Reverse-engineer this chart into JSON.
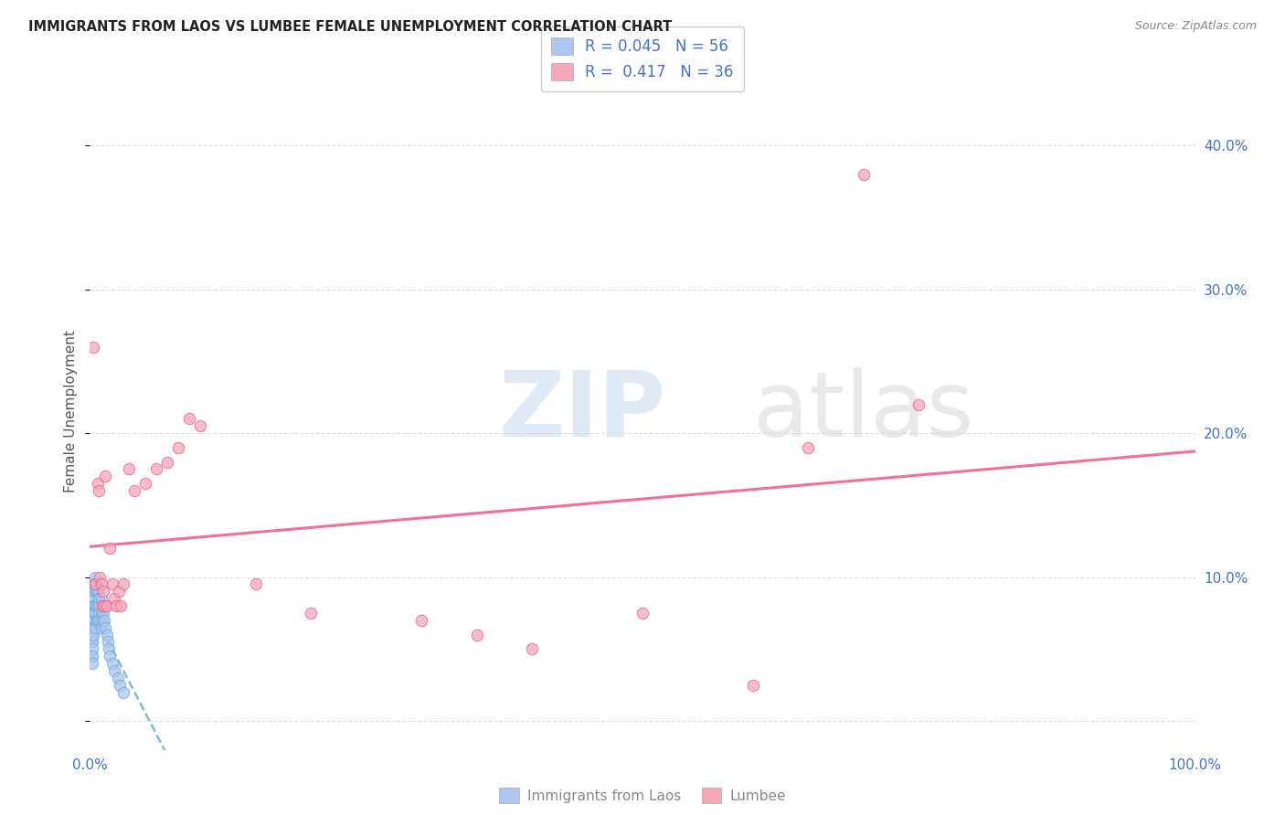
{
  "title": "IMMIGRANTS FROM LAOS VS LUMBEE FEMALE UNEMPLOYMENT CORRELATION CHART",
  "source": "Source: ZipAtlas.com",
  "ylabel": "Female Unemployment",
  "xlim": [
    0,
    1.0
  ],
  "ylim": [
    -0.02,
    0.45
  ],
  "xticks": [
    0.0,
    0.2,
    0.4,
    0.6,
    0.8,
    1.0
  ],
  "xticklabels": [
    "0.0%",
    "",
    "",
    "",
    "",
    "100.0%"
  ],
  "yticks": [
    0.0,
    0.1,
    0.2,
    0.3,
    0.4
  ],
  "yticklabels": [
    "",
    "10.0%",
    "20.0%",
    "30.0%",
    "40.0%"
  ],
  "laos_R": 0.045,
  "laos_N": 56,
  "lumbee_R": 0.417,
  "lumbee_N": 36,
  "laos_color": "#aec6f0",
  "lumbee_color": "#f4a7b9",
  "laos_line_color": "#6baed6",
  "lumbee_line_color": "#f06090",
  "laos_x": [
    0.001,
    0.001,
    0.001,
    0.002,
    0.002,
    0.002,
    0.002,
    0.002,
    0.002,
    0.002,
    0.003,
    0.003,
    0.003,
    0.003,
    0.003,
    0.003,
    0.003,
    0.004,
    0.004,
    0.004,
    0.004,
    0.004,
    0.005,
    0.005,
    0.005,
    0.005,
    0.005,
    0.005,
    0.006,
    0.006,
    0.006,
    0.006,
    0.007,
    0.007,
    0.007,
    0.008,
    0.008,
    0.009,
    0.009,
    0.01,
    0.01,
    0.01,
    0.011,
    0.011,
    0.012,
    0.013,
    0.014,
    0.015,
    0.016,
    0.017,
    0.018,
    0.02,
    0.022,
    0.025,
    0.027,
    0.03
  ],
  "laos_y": [
    0.06,
    0.055,
    0.045,
    0.07,
    0.065,
    0.06,
    0.055,
    0.05,
    0.045,
    0.04,
    0.095,
    0.085,
    0.08,
    0.075,
    0.07,
    0.065,
    0.06,
    0.09,
    0.085,
    0.08,
    0.075,
    0.07,
    0.1,
    0.095,
    0.09,
    0.08,
    0.075,
    0.065,
    0.095,
    0.09,
    0.08,
    0.07,
    0.09,
    0.08,
    0.07,
    0.085,
    0.075,
    0.08,
    0.07,
    0.085,
    0.075,
    0.065,
    0.08,
    0.07,
    0.075,
    0.07,
    0.065,
    0.06,
    0.055,
    0.05,
    0.045,
    0.04,
    0.035,
    0.03,
    0.025,
    0.02
  ],
  "lumbee_x": [
    0.003,
    0.005,
    0.007,
    0.008,
    0.009,
    0.01,
    0.011,
    0.012,
    0.013,
    0.014,
    0.015,
    0.018,
    0.02,
    0.022,
    0.024,
    0.026,
    0.028,
    0.03,
    0.035,
    0.04,
    0.05,
    0.06,
    0.07,
    0.08,
    0.09,
    0.1,
    0.15,
    0.2,
    0.3,
    0.35,
    0.4,
    0.5,
    0.6,
    0.65,
    0.7,
    0.75
  ],
  "lumbee_y": [
    0.26,
    0.095,
    0.165,
    0.16,
    0.1,
    0.095,
    0.08,
    0.09,
    0.08,
    0.17,
    0.08,
    0.12,
    0.095,
    0.085,
    0.08,
    0.09,
    0.08,
    0.095,
    0.175,
    0.16,
    0.165,
    0.175,
    0.18,
    0.19,
    0.21,
    0.205,
    0.095,
    0.075,
    0.07,
    0.06,
    0.05,
    0.075,
    0.025,
    0.19,
    0.38,
    0.22
  ]
}
